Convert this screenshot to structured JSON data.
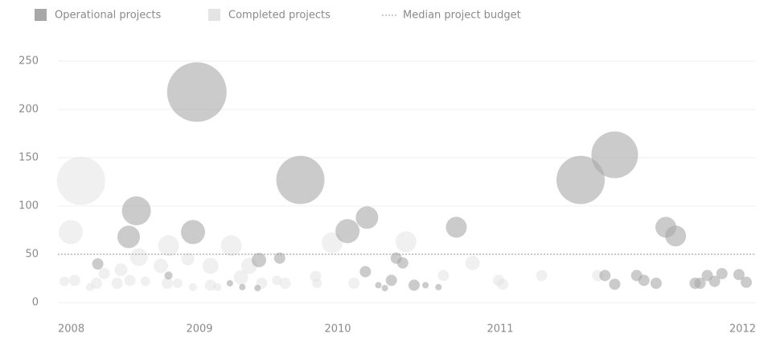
{
  "chart_data": {
    "type": "scatter",
    "legend": "top-left",
    "grid": true,
    "median": {
      "label": "Median project budget",
      "value": 50
    },
    "xlim": [
      2007.9,
      2012.1
    ],
    "xticks": [
      2008,
      2009,
      2010,
      2011,
      2012
    ],
    "ylim": [
      0,
      250
    ],
    "yticks": [
      0,
      50,
      100,
      150,
      200,
      250
    ],
    "series": [
      {
        "name": "Completed projects",
        "color": "#e4e4e4",
        "x": [
          2008.08,
          2008.0,
          2009.08,
          2008.76,
          2009.23,
          2008.53,
          2009.96,
          2010.42,
          2010.83,
          2008.7,
          2008.39,
          2008.26,
          2008.03,
          2007.95,
          2008.46,
          2008.36,
          2008.58,
          2008.83,
          2009.08,
          2009.3,
          2009.36,
          2009.45,
          2009.56,
          2009.62,
          2009.84,
          2009.85,
          2010.1,
          2010.65,
          2010.99,
          2011.01,
          2011.17,
          2011.4,
          2008.91,
          2008.75,
          2009.13,
          2008.95,
          2008.2,
          2008.15
        ],
        "values": [
          126,
          73,
          38,
          59,
          59,
          47,
          62,
          63,
          41,
          38,
          34,
          30,
          23,
          22,
          23,
          20,
          22,
          20,
          18,
          26,
          38,
          20,
          23,
          20,
          27,
          20,
          20,
          28,
          23,
          19,
          28,
          28,
          45,
          20,
          16,
          16,
          20,
          16
        ],
        "sizes": [
          30,
          15,
          10,
          13,
          13,
          11,
          13,
          13,
          9,
          9,
          8,
          7,
          7,
          6,
          7,
          7,
          6,
          6,
          7,
          9,
          10,
          7,
          6,
          7,
          7,
          6,
          7,
          7,
          7,
          7,
          7,
          7,
          8,
          7,
          5,
          5,
          7,
          5
        ]
      },
      {
        "name": "Operational projects",
        "color": "#a8a8a8",
        "x": [
          2008.98,
          2009.73,
          2011.33,
          2011.47,
          2008.51,
          2008.45,
          2008.95,
          2010.06,
          2010.18,
          2010.73,
          2011.68,
          2011.72,
          2008.21,
          2009.43,
          2009.58,
          2010.17,
          2010.36,
          2010.4,
          2010.33,
          2010.47,
          2011.43,
          2011.47,
          2011.56,
          2011.59,
          2011.64,
          2011.8,
          2011.82,
          2011.85,
          2011.88,
          2011.91,
          2011.98,
          2012.01,
          2008.76,
          2009.22,
          2009.31,
          2009.42,
          2010.25,
          2010.29,
          2010.54,
          2010.62
        ],
        "values": [
          218,
          127,
          127,
          153,
          95,
          68,
          73,
          74,
          88,
          78,
          78,
          69,
          40,
          44,
          46,
          32,
          46,
          41,
          23,
          18,
          28,
          19,
          28,
          23,
          20,
          20,
          20,
          28,
          22,
          30,
          29,
          21,
          28,
          20,
          16,
          15,
          18,
          15,
          18,
          16
        ],
        "sizes": [
          37,
          30,
          30,
          29,
          18,
          14,
          15,
          15,
          14,
          13,
          13,
          13,
          7,
          9,
          7,
          7,
          7,
          7,
          7,
          7,
          7,
          7,
          7,
          7,
          7,
          7,
          7,
          7,
          7,
          7,
          7,
          7,
          5,
          4,
          4,
          4,
          4,
          4,
          4,
          4
        ]
      }
    ]
  }
}
